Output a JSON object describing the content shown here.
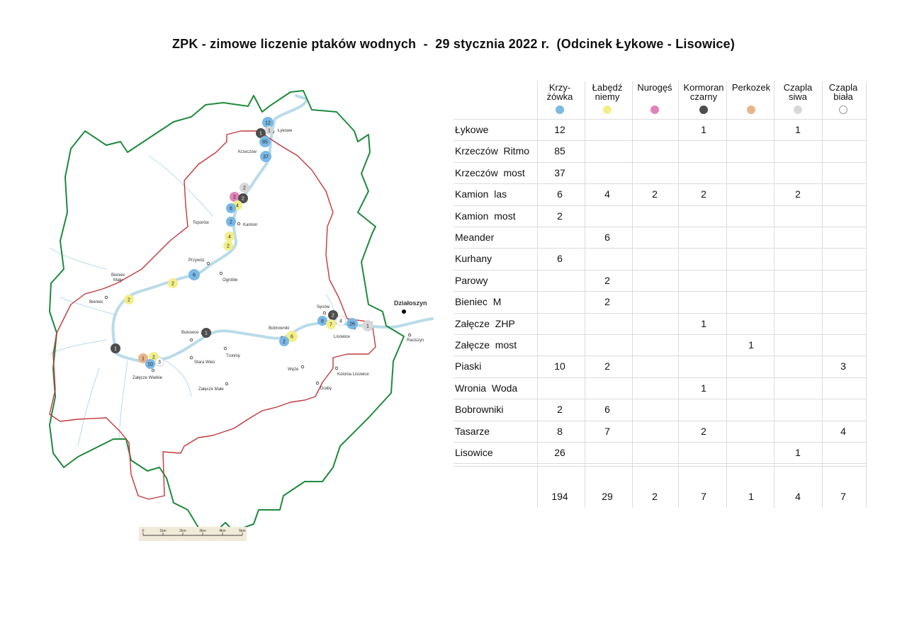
{
  "title": "ZPK - zimowe liczenie ptaków wodnych  -  29 stycznia 2022 r.  (Odcinek Łykowe - Lisowice)",
  "colors": {
    "boundary_outer": "#1e8a3c",
    "boundary_inner": "#c0393b",
    "river": "#b9dbe8",
    "krzyzowka": "#7ab8e6",
    "labedz": "#f2ef8a",
    "nuroges": "#e183b8",
    "kormoran": "#4d4d4d",
    "perkozek": "#eab48a",
    "czapla_siwa": "#d8d8d8",
    "czapla_biala": "#ffffff"
  },
  "species": [
    {
      "line1": "Krzy-",
      "line2": "żówka",
      "color": "#7ab8e6"
    },
    {
      "line1": "Łabędź",
      "line2": "niemy",
      "color": "#f2ef8a"
    },
    {
      "line1": "Nurogęś",
      "line2": "",
      "color": "#e183b8"
    },
    {
      "line1": "Kormoran",
      "line2": "czarny",
      "color": "#4d4d4d"
    },
    {
      "line1": "Perkozek",
      "line2": "",
      "color": "#eab48a"
    },
    {
      "line1": "Czapla",
      "line2": "siwa",
      "color": "#d8d8d8"
    },
    {
      "line1": "Czapla",
      "line2": "biała",
      "color": "#ffffff"
    }
  ],
  "rows": [
    {
      "name": "Łykowe",
      "values": [
        "12",
        "",
        "",
        "1",
        "",
        "1",
        ""
      ]
    },
    {
      "name": "Krzeczów  Ritmo",
      "values": [
        "85",
        "",
        "",
        "",
        "",
        "",
        ""
      ]
    },
    {
      "name": "Krzeczów  most",
      "values": [
        "37",
        "",
        "",
        "",
        "",
        "",
        ""
      ]
    },
    {
      "name": "Kamion  las",
      "values": [
        "6",
        "4",
        "2",
        "2",
        "",
        "2",
        ""
      ]
    },
    {
      "name": "Kamion  most",
      "values": [
        "2",
        "",
        "",
        "",
        "",
        "",
        ""
      ]
    },
    {
      "name": "Meander",
      "values": [
        "",
        "6",
        "",
        "",
        "",
        "",
        ""
      ]
    },
    {
      "name": "Kurhany",
      "values": [
        "6",
        "",
        "",
        "",
        "",
        "",
        ""
      ]
    },
    {
      "name": "Parowy",
      "values": [
        "",
        "2",
        "",
        "",
        "",
        "",
        ""
      ]
    },
    {
      "name": "Bieniec  M",
      "values": [
        "",
        "2",
        "",
        "",
        "",
        "",
        ""
      ]
    },
    {
      "name": "Załęcze  ZHP",
      "values": [
        "",
        "",
        "",
        "1",
        "",
        "",
        ""
      ]
    },
    {
      "name": "Załęcze  most",
      "values": [
        "",
        "",
        "",
        "",
        "1",
        "",
        ""
      ]
    },
    {
      "name": "Piaski",
      "values": [
        "10",
        "2",
        "",
        "",
        "",
        "",
        "3"
      ]
    },
    {
      "name": "Wronia  Woda",
      "values": [
        "",
        "",
        "",
        "1",
        "",
        "",
        ""
      ]
    },
    {
      "name": "Bobrowniki",
      "values": [
        "2",
        "6",
        "",
        "",
        "",
        "",
        ""
      ]
    },
    {
      "name": "Tasarze",
      "values": [
        "8",
        "7",
        "",
        "2",
        "",
        "",
        "4"
      ]
    },
    {
      "name": "Lisowice",
      "values": [
        "26",
        "",
        "",
        "",
        "",
        "1",
        ""
      ]
    }
  ],
  "totals": [
    "194",
    "29",
    "2",
    "7",
    "1",
    "4",
    "7"
  ],
  "map": {
    "places": [
      {
        "name": "Łykowe",
        "bold": false
      },
      {
        "name": "Krzeczów",
        "bold": false
      },
      {
        "name": "Toporów",
        "bold": false
      },
      {
        "name": "Kamion",
        "bold": false
      },
      {
        "name": "Przywóz",
        "bold": false
      },
      {
        "name": "Ogróble",
        "bold": false
      },
      {
        "name": "Bieniec Mały",
        "bold": false
      },
      {
        "name": "Bieniec",
        "bold": false
      },
      {
        "name": "Bukowce",
        "bold": false
      },
      {
        "name": "Troniny",
        "bold": false
      },
      {
        "name": "Stara Wieś",
        "bold": false
      },
      {
        "name": "Załęcze Wielkie",
        "bold": false
      },
      {
        "name": "Załęcze Małe",
        "bold": false
      },
      {
        "name": "Bobrowniki",
        "bold": false
      },
      {
        "name": "Sęsów",
        "bold": false
      },
      {
        "name": "Lisowice",
        "bold": false
      },
      {
        "name": "Kolonia Lisowice",
        "bold": false
      },
      {
        "name": "Węże",
        "bold": false
      },
      {
        "name": "Draby",
        "bold": false
      },
      {
        "name": "Działoszyn",
        "bold": true
      },
      {
        "name": "Raciszyn",
        "bold": false
      }
    ],
    "markers": [
      {
        "species": "krzyzowka",
        "count": "12"
      },
      {
        "species": "kormoran",
        "count": "1"
      },
      {
        "species": "czapla_siwa",
        "count": "1"
      },
      {
        "species": "krzyzowka",
        "count": "85"
      },
      {
        "species": "krzyzowka",
        "count": "37"
      },
      {
        "species": "czapla_siwa",
        "count": "2"
      },
      {
        "species": "nuroges",
        "count": "2"
      },
      {
        "species": "kormoran",
        "count": "2"
      },
      {
        "species": "labedz",
        "count": "4"
      },
      {
        "species": "krzyzowka",
        "count": "6"
      },
      {
        "species": "krzyzowka",
        "count": "2"
      },
      {
        "species": "labedz",
        "count": "4"
      },
      {
        "species": "labedz",
        "count": "2"
      },
      {
        "species": "krzyzowka",
        "count": "6"
      },
      {
        "species": "labedz",
        "count": "2"
      },
      {
        "species": "labedz",
        "count": "2"
      },
      {
        "species": "kormoran",
        "count": "1"
      },
      {
        "species": "kormoran",
        "count": "1"
      },
      {
        "species": "perkozek",
        "count": "1"
      },
      {
        "species": "labedz",
        "count": "2"
      },
      {
        "species": "krzyzowka",
        "count": "10"
      },
      {
        "species": "czapla_biala",
        "count": "3"
      },
      {
        "species": "labedz",
        "count": "6"
      },
      {
        "species": "krzyzowka",
        "count": "2"
      },
      {
        "species": "krzyzowka",
        "count": "8"
      },
      {
        "species": "kormoran",
        "count": "2"
      },
      {
        "species": "labedz",
        "count": "7"
      },
      {
        "species": "czapla_biala",
        "count": "4"
      },
      {
        "species": "krzyzowka",
        "count": "26"
      },
      {
        "species": "czapla_siwa",
        "count": "1"
      }
    ],
    "scale": [
      "0",
      "1km",
      "2km",
      "3km",
      "4km",
      "5km"
    ]
  }
}
